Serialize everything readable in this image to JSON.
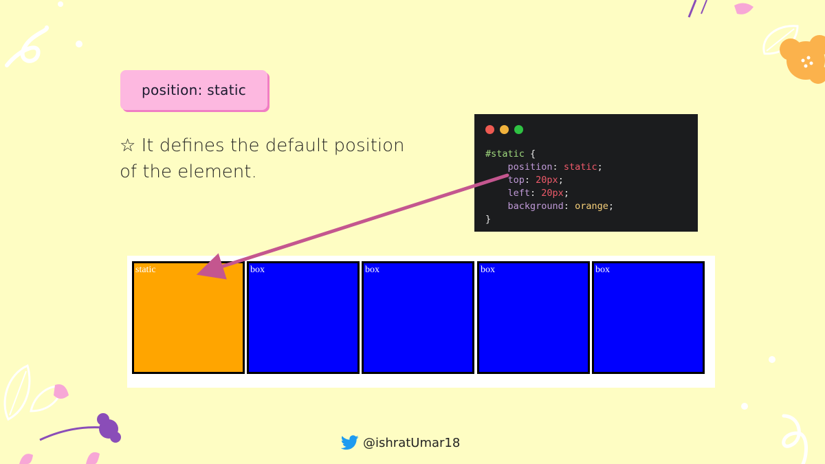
{
  "title": "position: static",
  "description": "☆ It defines the default position of the element.",
  "code": {
    "selector": "#static",
    "open_brace": "{",
    "close_brace": "}",
    "declarations": [
      {
        "property": "position",
        "value": "static"
      },
      {
        "property": "top",
        "value": "20px"
      },
      {
        "property": "left",
        "value": "20px"
      },
      {
        "property": "background",
        "value": "orange"
      }
    ],
    "window_dots": [
      "#ee5a52",
      "#f1b23c",
      "#2fc243"
    ]
  },
  "demo": {
    "boxes": [
      {
        "label": "static",
        "color": "#ffa500"
      },
      {
        "label": "box",
        "color": "#0000ff"
      },
      {
        "label": "box",
        "color": "#0000ff"
      },
      {
        "label": "box",
        "color": "#0000ff"
      },
      {
        "label": "box",
        "color": "#0000ff"
      }
    ]
  },
  "footer": {
    "icon": "twitter-bird-icon",
    "handle": "@ishratUmar18"
  },
  "colors": {
    "background": "#fefdc3",
    "pill": "#fdb8e0",
    "arrow": "#c4568f"
  }
}
